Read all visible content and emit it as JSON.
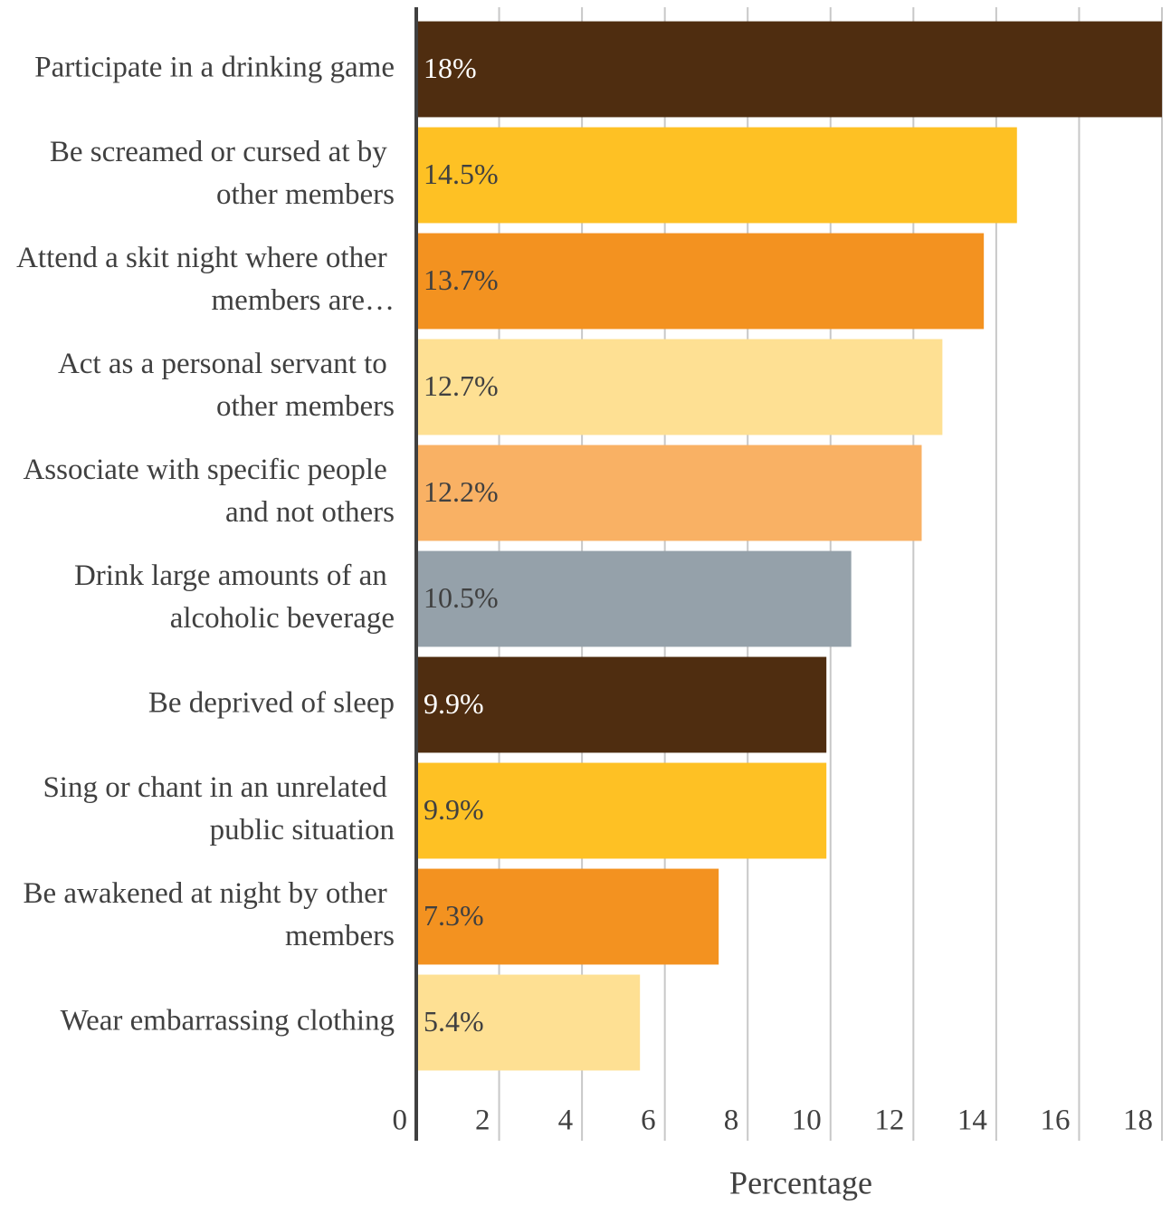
{
  "chart_data": {
    "type": "bar",
    "orientation": "horizontal",
    "x_label": "Percentage",
    "categories": [
      "Participate in a drinking game",
      "Be screamed or cursed at by other members",
      "Attend a skit night where other members are…",
      "Act as a personal servant to other members",
      "Associate with specific people and not others",
      "Drink large amounts of an alcoholic beverage",
      "Be deprived of sleep",
      "Sing or chant in an unrelated public situation",
      "Be awakened at night by other members",
      "Wear embarrassing clothing"
    ],
    "values": [
      18,
      14.5,
      13.7,
      12.7,
      12.2,
      10.5,
      9.9,
      9.9,
      7.3,
      5.4
    ],
    "value_labels": [
      "18%",
      "14.5%",
      "13.7%",
      "12.7%",
      "12.2%",
      "10.5%",
      "9.9%",
      "9.9%",
      "7.3%",
      "5.4%"
    ],
    "colors": [
      "#4f2d10",
      "#fec124",
      "#f39220",
      "#fee093",
      "#f9b164",
      "#95a1aa",
      "#4f2d10",
      "#fec124",
      "#f39220",
      "#fee093"
    ],
    "xlim": [
      0,
      18
    ],
    "xticks": [
      0,
      2,
      4,
      6,
      8,
      10,
      12,
      14,
      16,
      18
    ],
    "grid": true
  }
}
